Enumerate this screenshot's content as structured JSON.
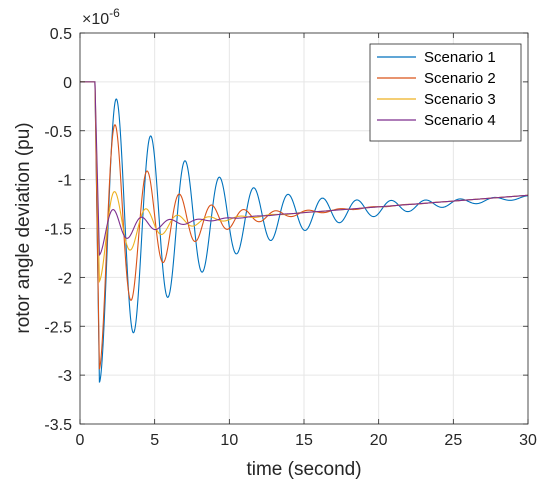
{
  "chart_data": {
    "type": "line",
    "title": "",
    "xlabel": "time (second)",
    "ylabel": "rotor angle deviation (pu)",
    "exponent_label": "×10",
    "exponent_power": "-6",
    "xlim": [
      0,
      30
    ],
    "ylim": [
      -3.5,
      0.5
    ],
    "x_ticks": [
      0,
      5,
      10,
      15,
      20,
      25,
      30
    ],
    "x_tick_labels": [
      "0",
      "5",
      "10",
      "15",
      "20",
      "25",
      "30"
    ],
    "y_ticks": [
      0.5,
      0,
      -0.5,
      -1,
      -1.5,
      -2,
      -2.5,
      -3,
      -3.5
    ],
    "y_tick_labels": [
      "0.5",
      "0",
      "-0.5",
      "-1",
      "-1.5",
      "-2",
      "-2.5",
      "-3",
      "-3.5"
    ],
    "grid": true,
    "legend_position": "top-right",
    "disturbance_time": 1.0,
    "series": [
      {
        "name": "Scenario 1",
        "color": "#0072BD",
        "base_start": -1.5,
        "base_end": -1.18,
        "amplitude": 1.75,
        "decay": 0.16,
        "period": 2.3
      },
      {
        "name": "Scenario 2",
        "color": "#D95319",
        "base_start": -1.5,
        "base_end": -1.16,
        "amplitude": 1.6,
        "decay": 0.3,
        "period": 2.15
      },
      {
        "name": "Scenario 3",
        "color": "#EDB120",
        "base_start": -1.5,
        "base_end": -1.16,
        "amplitude": 0.6,
        "decay": 0.38,
        "period": 2.1
      },
      {
        "name": "Scenario 4",
        "color": "#7E2F8E",
        "base_start": -1.5,
        "base_end": -1.16,
        "amplitude": 0.3,
        "decay": 0.42,
        "period": 1.9
      }
    ]
  }
}
